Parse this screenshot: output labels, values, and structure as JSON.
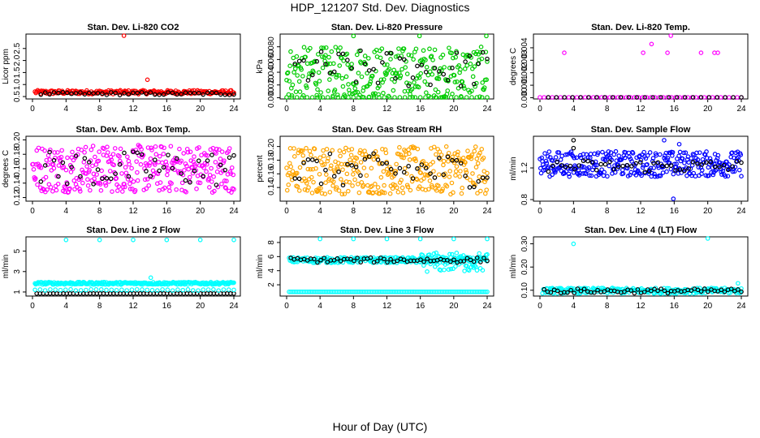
{
  "main_title": "HDP_121207  Std. Dev. Diagnostics",
  "x_axis_title": "Hour of Day (UTC)",
  "colors": {
    "overlay": "#000000",
    "co2": "#ff0000",
    "pressure": "#00cc00",
    "temp": "#ff00ff",
    "amb_box": "#ff00ff",
    "rh": "#ffa500",
    "sample_flow": "#0000ff",
    "line_flow": "#00ffff"
  },
  "chart_data": [
    {
      "type": "scatter",
      "title": "Stan. Dev. Li-820 CO2",
      "ylabel": "Licor ppm",
      "xlim": [
        0,
        24
      ],
      "xticks": [
        0,
        4,
        8,
        12,
        16,
        20,
        24
      ],
      "ylim": [
        0.4,
        3.1
      ],
      "yticks": [
        "0.5",
        "1.0",
        "1.5",
        "2.0",
        "2.5"
      ],
      "series": [
        {
          "color": "#ff0000",
          "x": [
            10.9,
            13.7
          ],
          "y": [
            3.05,
            1.2
          ],
          "band": {
            "x": [
              0.3,
              24
            ],
            "center": 0.68,
            "spread": 0.08,
            "n": 220
          }
        },
        {
          "color": "#000000",
          "x": [],
          "y": [],
          "band": {
            "x": [
              1,
              24
            ],
            "center": 0.62,
            "spread": 0.06,
            "n": 45
          }
        }
      ]
    },
    {
      "type": "scatter",
      "title": "Stan. Dev. Li-820 Pressure",
      "ylabel": "kPa",
      "xlim": [
        0,
        24
      ],
      "xticks": [
        0,
        4,
        8,
        12,
        16,
        20,
        24
      ],
      "ylim": [
        -0.002,
        0.1
      ],
      "yticks": [
        "0.000",
        "0.020",
        "0.040",
        "0.060",
        "0.080"
      ],
      "series": [
        {
          "color": "#00cc00",
          "x": [
            8,
            15.9,
            23.9
          ],
          "y": [
            0.097,
            0.097,
            0.097
          ],
          "band": {
            "x": [
              0,
              24
            ],
            "center": 0.04,
            "spread": 0.04,
            "n": 300
          }
        },
        {
          "color": "#00cc00",
          "x": [],
          "y": [],
          "band": {
            "x": [
              0,
              24
            ],
            "center": 0.0,
            "spread": 0.0,
            "n": 40
          }
        },
        {
          "color": "#000000",
          "x": [],
          "y": [],
          "band": {
            "x": [
              1,
              24
            ],
            "center": 0.045,
            "spread": 0.03,
            "n": 45
          }
        }
      ]
    },
    {
      "type": "scatter",
      "title": "Stan. Dev. Li-820 Temp.",
      "ylabel": "degrees C",
      "xlim": [
        0,
        24
      ],
      "xticks": [
        0,
        4,
        8,
        12,
        16,
        20,
        24
      ],
      "ylim": [
        -0.0001,
        0.0051
      ],
      "yticks": [
        "0.000",
        "0.001",
        "0.002",
        "0.003",
        "0.004"
      ],
      "series": [
        {
          "color": "#ff00ff",
          "x": [
            2.9,
            12.3,
            13.3,
            15.2,
            15.6,
            19.2,
            20.8,
            21.2
          ],
          "y": [
            0.0036,
            0.0036,
            0.0043,
            0.0036,
            0.005,
            0.0036,
            0.0036,
            0.0036
          ],
          "band": {
            "x": [
              0,
              24
            ],
            "center": 0.0,
            "spread": 0.0,
            "n": 50
          }
        },
        {
          "color": "#000000",
          "x": [],
          "y": [],
          "band": {
            "x": [
              1,
              24
            ],
            "center": 0.0,
            "spread": 0.0,
            "n": 25
          }
        }
      ]
    },
    {
      "type": "scatter",
      "title": "Stan. Dev. Amb. Box Temp.",
      "ylabel": "degrees C",
      "xlim": [
        0,
        24
      ],
      "xticks": [
        0,
        4,
        8,
        12,
        16,
        20,
        24
      ],
      "ylim": [
        0.115,
        0.205
      ],
      "yticks": [
        "0.12",
        "0.14",
        "0.16",
        "0.18",
        "0.20"
      ],
      "series": [
        {
          "color": "#ff00ff",
          "x": [],
          "y": [],
          "band": {
            "x": [
              0,
              24
            ],
            "center": 0.16,
            "spread": 0.033,
            "n": 330
          }
        },
        {
          "color": "#000000",
          "x": [],
          "y": [],
          "band": {
            "x": [
              1,
              24
            ],
            "center": 0.16,
            "spread": 0.025,
            "n": 45
          }
        }
      ]
    },
    {
      "type": "scatter",
      "title": "Stan. Dev. Gas Stream RH",
      "ylabel": "percent",
      "xlim": [
        0,
        24
      ],
      "xticks": [
        0,
        4,
        8,
        12,
        16,
        20,
        24
      ],
      "ylim": [
        0.12,
        0.215
      ],
      "yticks": [
        "0.14",
        "0.16",
        "0.18",
        "0.20"
      ],
      "series": [
        {
          "color": "#ffa500",
          "x": [],
          "y": [],
          "band": {
            "x": [
              0,
              24
            ],
            "center": 0.165,
            "spread": 0.035,
            "n": 330
          }
        },
        {
          "color": "#000000",
          "x": [],
          "y": [],
          "band": {
            "x": [
              1,
              24
            ],
            "center": 0.165,
            "spread": 0.025,
            "n": 45
          }
        }
      ]
    },
    {
      "type": "scatter",
      "title": "Stan. Dev. Sample Flow",
      "ylabel": "ml/min",
      "xlim": [
        0,
        24
      ],
      "xticks": [
        0,
        4,
        8,
        12,
        16,
        20,
        24
      ],
      "ylim": [
        0.78,
        1.6
      ],
      "yticks": [
        "0.8",
        "1.2"
      ],
      "series": [
        {
          "color": "#0000ff",
          "x": [
            15.9,
            14.8,
            16.6
          ],
          "y": [
            0.81,
            1.55,
            1.5
          ],
          "band": {
            "x": [
              0,
              24
            ],
            "center": 1.25,
            "spread": 0.16,
            "n": 330
          }
        },
        {
          "color": "#000000",
          "x": [
            4,
            4
          ],
          "y": [
            1.55,
            1.45
          ],
          "band": {
            "x": [
              1,
              24
            ],
            "center": 1.22,
            "spread": 0.08,
            "n": 45
          }
        }
      ]
    },
    {
      "type": "scatter",
      "title": "Stan. Dev. Line 2 Flow",
      "ylabel": "ml/min",
      "xlim": [
        0,
        24
      ],
      "xticks": [
        0,
        4,
        8,
        12,
        16,
        20,
        24
      ],
      "ylim": [
        0.6,
        6.4
      ],
      "yticks": [
        "1",
        "3",
        "5"
      ],
      "series": [
        {
          "color": "#00ffff",
          "x": [
            4,
            8,
            12,
            16,
            20,
            24,
            14.1
          ],
          "y": [
            6.1,
            6.1,
            6.1,
            6.1,
            6.1,
            6.1,
            2.4
          ],
          "band": {
            "x": [
              0.3,
              24
            ],
            "center": 1.85,
            "spread": 0.12,
            "n": 260
          }
        },
        {
          "color": "#000000",
          "x": [],
          "y": [],
          "band": {
            "x": [
              0.5,
              24
            ],
            "center": 0.85,
            "spread": 0.0,
            "n": 60
          }
        },
        {
          "color": "#00ffff",
          "x": [],
          "y": [],
          "band": {
            "x": [
              0.3,
              24
            ],
            "center": 1.2,
            "spread": 0.06,
            "n": 40
          }
        }
      ]
    },
    {
      "type": "scatter",
      "title": "Stan. Dev. Line 3 Flow",
      "ylabel": "ml/min",
      "xlim": [
        0,
        24
      ],
      "xticks": [
        0,
        4,
        8,
        12,
        16,
        20,
        24
      ],
      "ylim": [
        0.4,
        8.8
      ],
      "yticks": [
        "2",
        "4",
        "6",
        "8"
      ],
      "series": [
        {
          "color": "#00ffff",
          "x": [
            4,
            8,
            12,
            16,
            20,
            24
          ],
          "y": [
            8.5,
            8.5,
            8.5,
            8.5,
            8.5,
            8.5
          ],
          "band": {
            "x": [
              0.3,
              24
            ],
            "center": 5.5,
            "spread": 0.4,
            "n": 240
          }
        },
        {
          "color": "#00ffff",
          "x": [],
          "y": [],
          "band": {
            "x": [
              16,
              24
            ],
            "center": 5.2,
            "spread": 1.4,
            "n": 60
          }
        },
        {
          "color": "#00ffff",
          "x": [],
          "y": [],
          "band": {
            "x": [
              0.3,
              24
            ],
            "center": 1.0,
            "spread": 0.0,
            "n": 120
          }
        },
        {
          "color": "#000000",
          "x": [],
          "y": [],
          "band": {
            "x": [
              0.5,
              24
            ],
            "center": 5.5,
            "spread": 0.35,
            "n": 60
          }
        }
      ]
    },
    {
      "type": "scatter",
      "title": "Stan. Dev. Line 4 (LT) Flow",
      "ylabel": "ml/min",
      "xlim": [
        0,
        24
      ],
      "xticks": [
        0,
        4,
        8,
        12,
        16,
        20,
        24
      ],
      "ylim": [
        0.075,
        0.33
      ],
      "yticks": [
        "0.10",
        "0.20",
        "0.30"
      ],
      "series": [
        {
          "color": "#00ffff",
          "x": [
            4,
            20,
            23.6
          ],
          "y": [
            0.3,
            0.325,
            0.13
          ],
          "band": {
            "x": [
              0.3,
              24
            ],
            "center": 0.098,
            "spread": 0.012,
            "n": 240
          }
        },
        {
          "color": "#000000",
          "x": [],
          "y": [],
          "band": {
            "x": [
              0.5,
              24
            ],
            "center": 0.097,
            "spread": 0.01,
            "n": 60
          }
        }
      ]
    }
  ]
}
